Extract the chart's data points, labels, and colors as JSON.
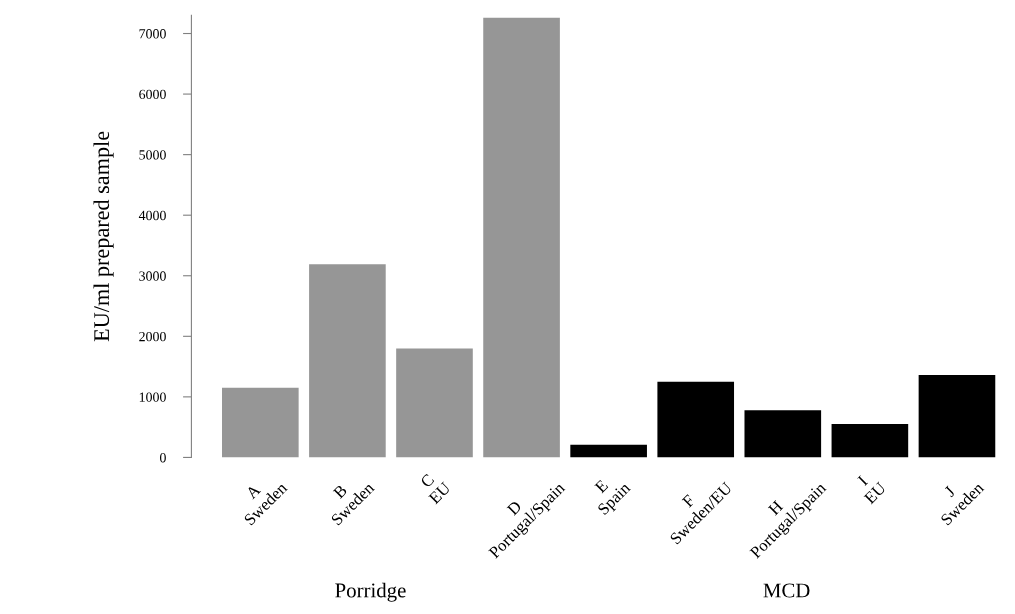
{
  "chart_data": {
    "type": "bar",
    "ylabel": "EU/ml prepared sample",
    "categories": [
      "A\nSweden",
      "B\nSweden",
      "C\nEU",
      "D\nPortugal/Spain",
      "E\nSpain",
      "F\nSweden/EU",
      "H\nPortugal/Spain",
      "I\nEU",
      "J\nSweden"
    ],
    "values": [
      1150,
      3190,
      1800,
      7260,
      210,
      1250,
      780,
      550,
      1360
    ],
    "colors": [
      "#969696",
      "#969696",
      "#969696",
      "#969696",
      "#000000",
      "#000000",
      "#000000",
      "#000000",
      "#000000"
    ],
    "ylim": [
      0,
      7300
    ],
    "yticks": [
      0,
      1000,
      2000,
      3000,
      4000,
      5000,
      6000,
      7000
    ],
    "annotations": [
      "Porridge",
      "MCD"
    ],
    "grid": false,
    "legend": false
  }
}
